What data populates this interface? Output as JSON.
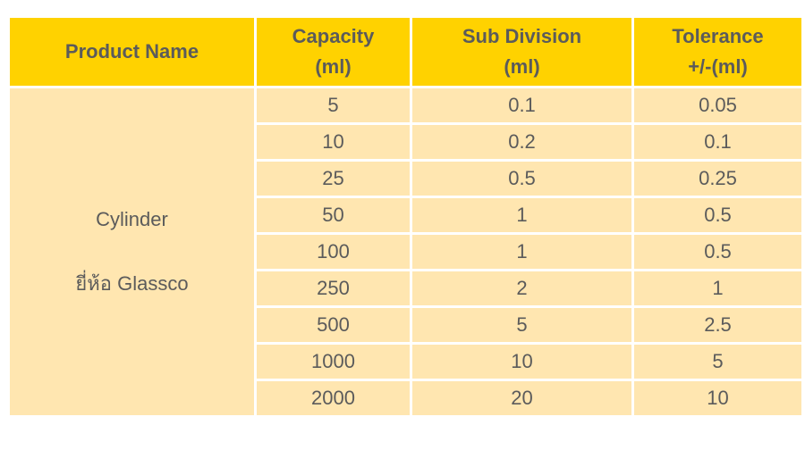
{
  "table": {
    "headers": {
      "product": [
        "Product Name"
      ],
      "capacity": [
        "Capacity",
        "(ml)"
      ],
      "subdivision": [
        "Sub Division",
        "(ml)"
      ],
      "tolerance": [
        "Tolerance",
        "+/-(ml)"
      ]
    },
    "product_name": {
      "line1": "Cylinder",
      "line2": "ยี่ห้อ Glassco"
    },
    "rows": [
      {
        "capacity": "5",
        "subdivision": "0.1",
        "tolerance": "0.05"
      },
      {
        "capacity": "10",
        "subdivision": "0.2",
        "tolerance": "0.1"
      },
      {
        "capacity": "25",
        "subdivision": "0.5",
        "tolerance": "0.25"
      },
      {
        "capacity": "50",
        "subdivision": "1",
        "tolerance": "0.5"
      },
      {
        "capacity": "100",
        "subdivision": "1",
        "tolerance": "0.5"
      },
      {
        "capacity": "250",
        "subdivision": "2",
        "tolerance": "1"
      },
      {
        "capacity": "500",
        "subdivision": "5",
        "tolerance": "2.5"
      },
      {
        "capacity": "1000",
        "subdivision": "10",
        "tolerance": "5"
      },
      {
        "capacity": "2000",
        "subdivision": "20",
        "tolerance": "10"
      }
    ]
  },
  "colors": {
    "header_bg": "#ffd200",
    "cell_bg": "#ffe6b0",
    "text": "#5b5b5b"
  }
}
